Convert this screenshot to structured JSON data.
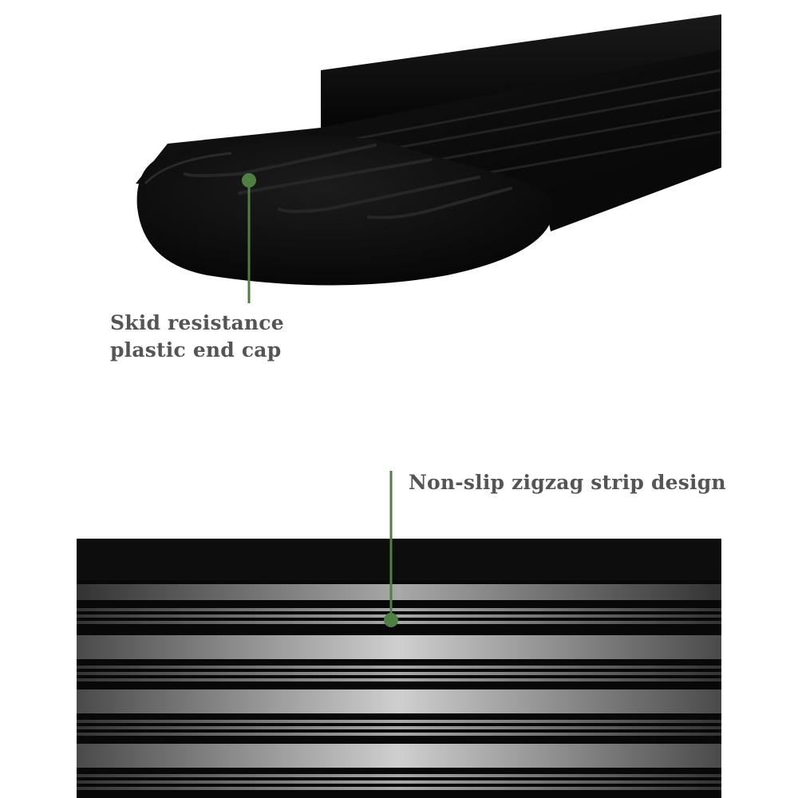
{
  "callouts": {
    "end_cap": {
      "label": "Skid resistance plastic end cap"
    },
    "strip": {
      "label": "Non-slip zigzag strip design"
    }
  },
  "colors": {
    "accent": "#4f7f43",
    "label": "#555555",
    "board_black": "#0b0b0b",
    "background": "#ffffff"
  }
}
